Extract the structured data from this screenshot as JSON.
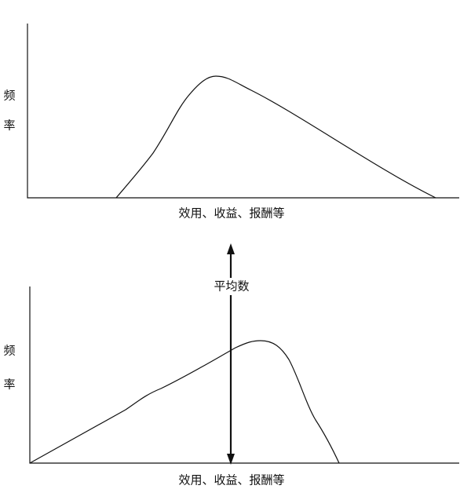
{
  "top": {
    "y_label": [
      "频",
      "率"
    ],
    "x_label": "效用、收益、报酬等"
  },
  "arrow_label": "平均数",
  "bottom": {
    "y_label": [
      "频",
      "率"
    ],
    "x_label": "效用、收益、报酬等"
  }
}
